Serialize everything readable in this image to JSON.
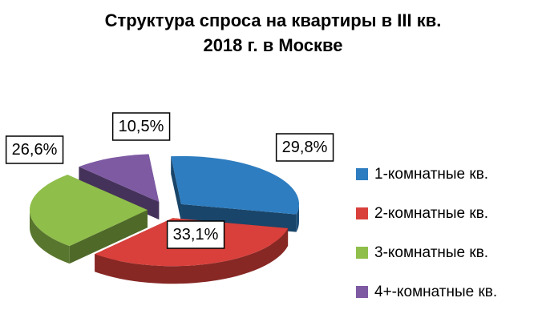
{
  "title": {
    "line1": "Структура спроса на квартиры в III кв.",
    "line2": "2018 г. в Москве"
  },
  "legend": {
    "items": [
      {
        "label": "1-комнатные кв.",
        "color": "#2E7DC0"
      },
      {
        "label": "2-комнатные кв.",
        "color": "#D9403B"
      },
      {
        "label": "3-комнатные кв.",
        "color": "#8FBE4A"
      },
      {
        "label": "4+-комнатные кв.",
        "color": "#7E5AA3"
      }
    ]
  },
  "chart_data": {
    "type": "pie",
    "style": "3d-exploded",
    "title": "Структура спроса на квартиры в III кв. 2018 г. в Москве",
    "categories": [
      "1-комнатные кв.",
      "2-комнатные кв.",
      "3-комнатные кв.",
      "4+-комнатные кв."
    ],
    "values": [
      29.8,
      33.1,
      26.6,
      10.5
    ],
    "labels": [
      "29,8%",
      "33,1%",
      "26,6%",
      "10,5%"
    ],
    "colors": [
      "#2E7DC0",
      "#D9403B",
      "#8FBE4A",
      "#7E5AA3"
    ],
    "legend_position": "right"
  }
}
